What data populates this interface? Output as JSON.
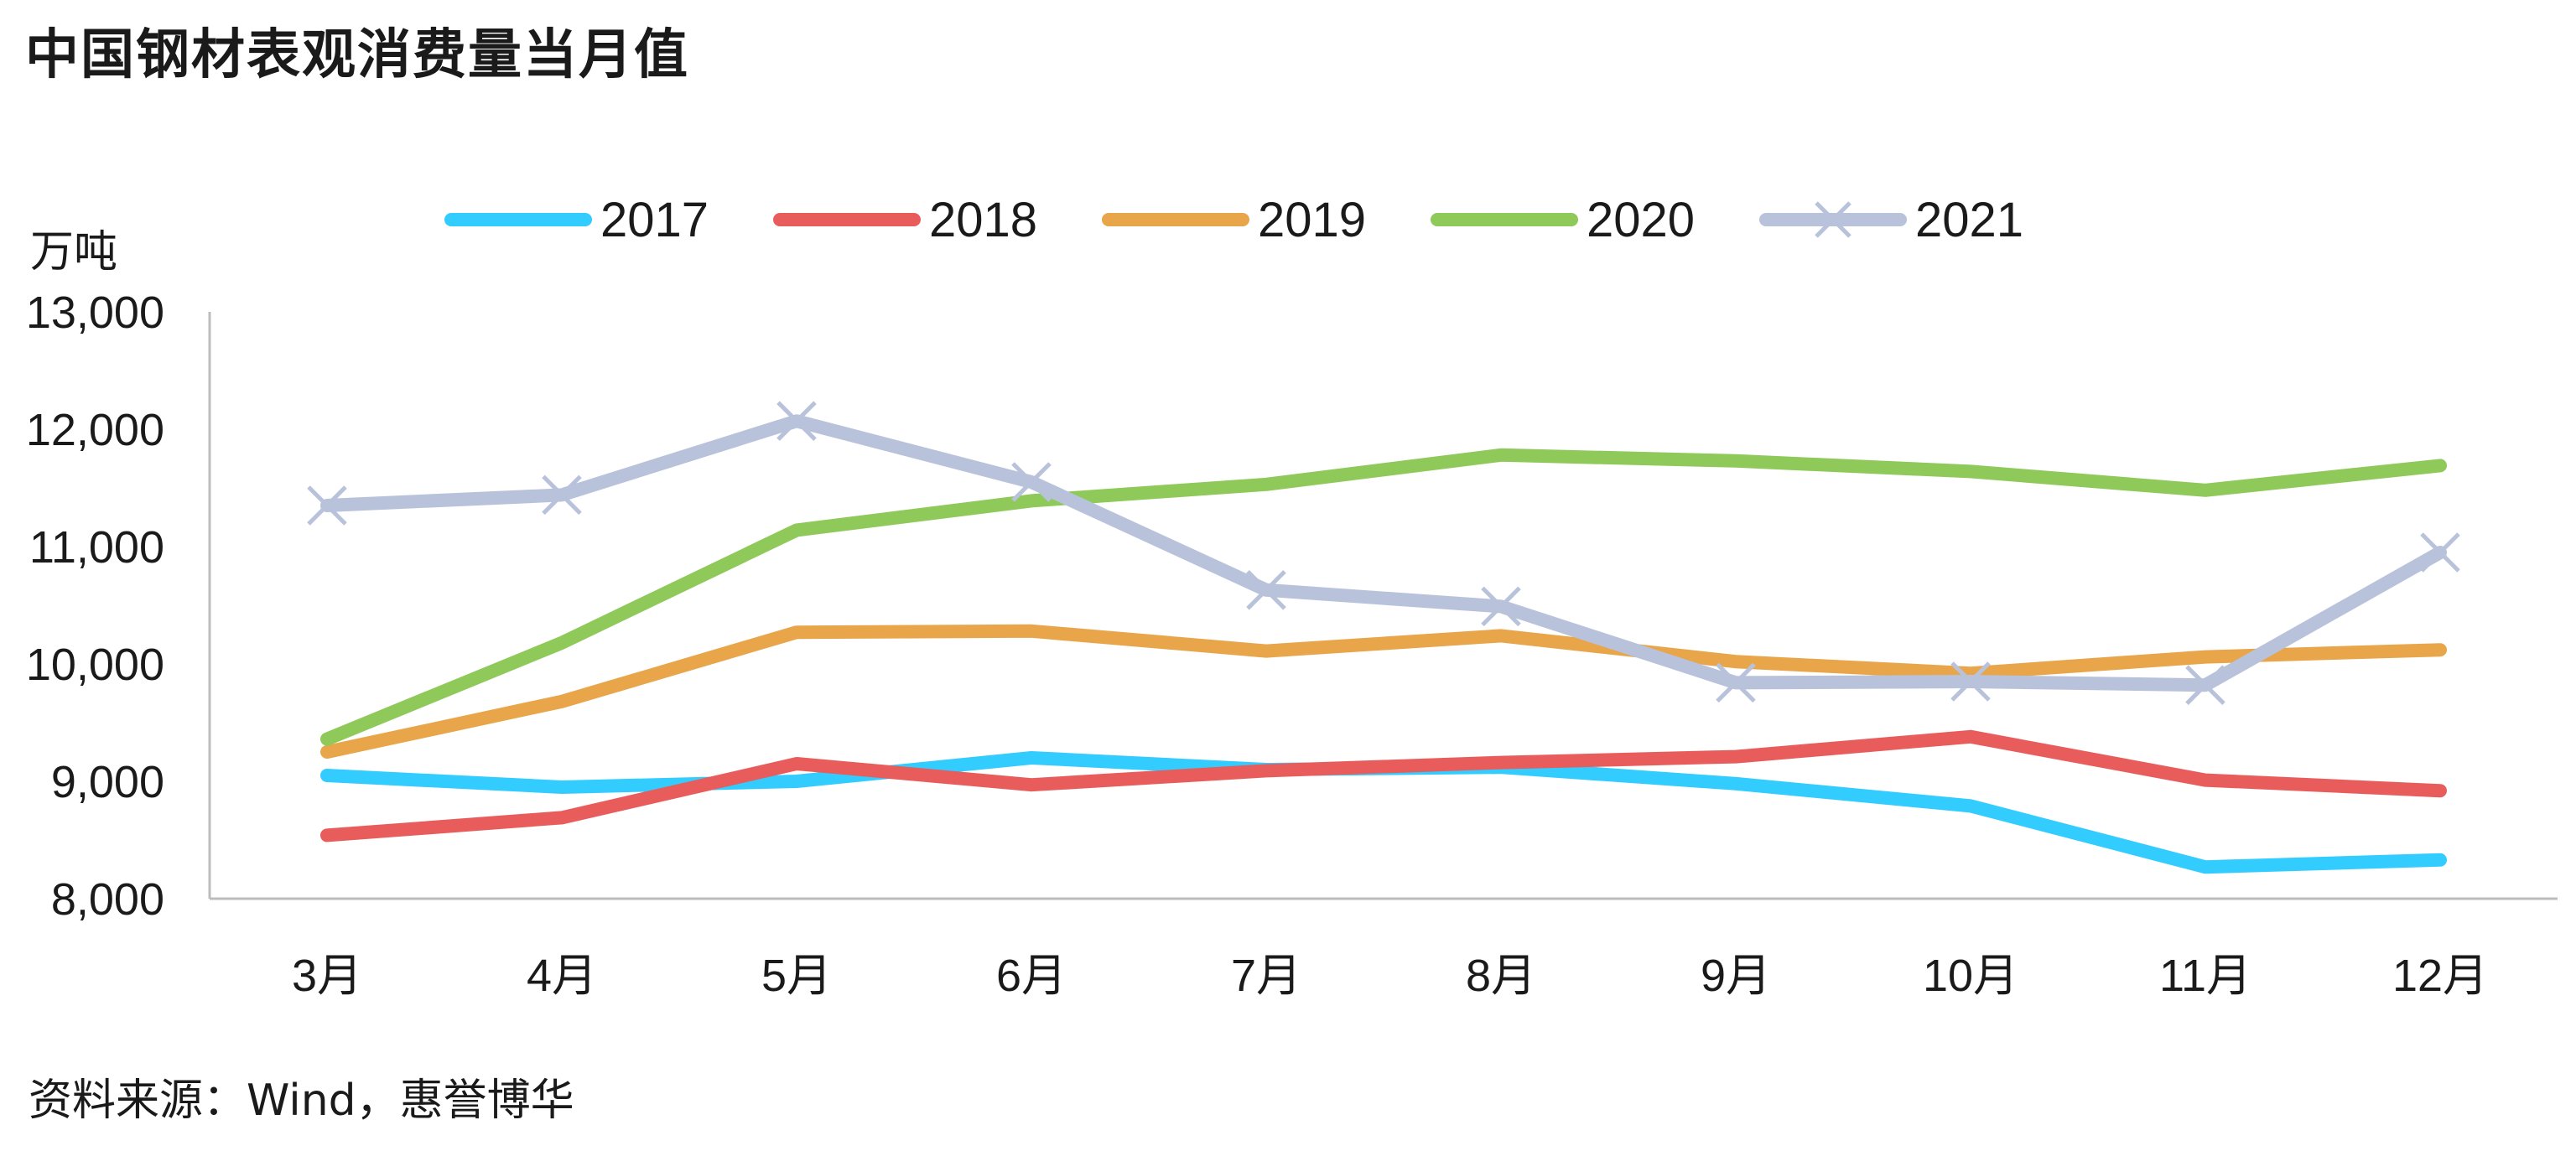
{
  "chart_data": {
    "type": "line",
    "title": "中国钢材表观消费量当月值",
    "ylabel": "万吨",
    "source": "资料来源：Wind，惠誉博华",
    "categories": [
      "3月",
      "4月",
      "5月",
      "6月",
      "7月",
      "8月",
      "9月",
      "10月",
      "11月",
      "12月"
    ],
    "ylim": [
      8000,
      13000
    ],
    "yticks": [
      8000,
      9000,
      10000,
      11000,
      12000,
      13000
    ],
    "ytick_labels": [
      "8,000",
      "9,000",
      "10,000",
      "11,000",
      "12,000",
      "13,000"
    ],
    "grid": false,
    "legend_position": "top",
    "series": [
      {
        "name": "2017",
        "color": "#33ccff",
        "marker": "none",
        "values": [
          9050,
          8950,
          9000,
          9200,
          9100,
          9120,
          8980,
          8790,
          8270,
          8330
        ]
      },
      {
        "name": "2018",
        "color": "#e85c5c",
        "marker": "none",
        "values": [
          8540,
          8690,
          9150,
          8970,
          9090,
          9160,
          9210,
          9380,
          9010,
          8920
        ]
      },
      {
        "name": "2019",
        "color": "#e8a54a",
        "marker": "none",
        "values": [
          9250,
          9680,
          10270,
          10280,
          10110,
          10240,
          10020,
          9920,
          10060,
          10120
        ]
      },
      {
        "name": "2020",
        "color": "#8ec95a",
        "marker": "none",
        "values": [
          9360,
          10180,
          11140,
          11390,
          11530,
          11780,
          11730,
          11640,
          11480,
          11690
        ]
      },
      {
        "name": "2021",
        "color": "#b8c2da",
        "marker": "x",
        "values": [
          11350,
          11440,
          12070,
          11550,
          10630,
          10490,
          9840,
          9850,
          9820,
          10950
        ]
      }
    ]
  }
}
